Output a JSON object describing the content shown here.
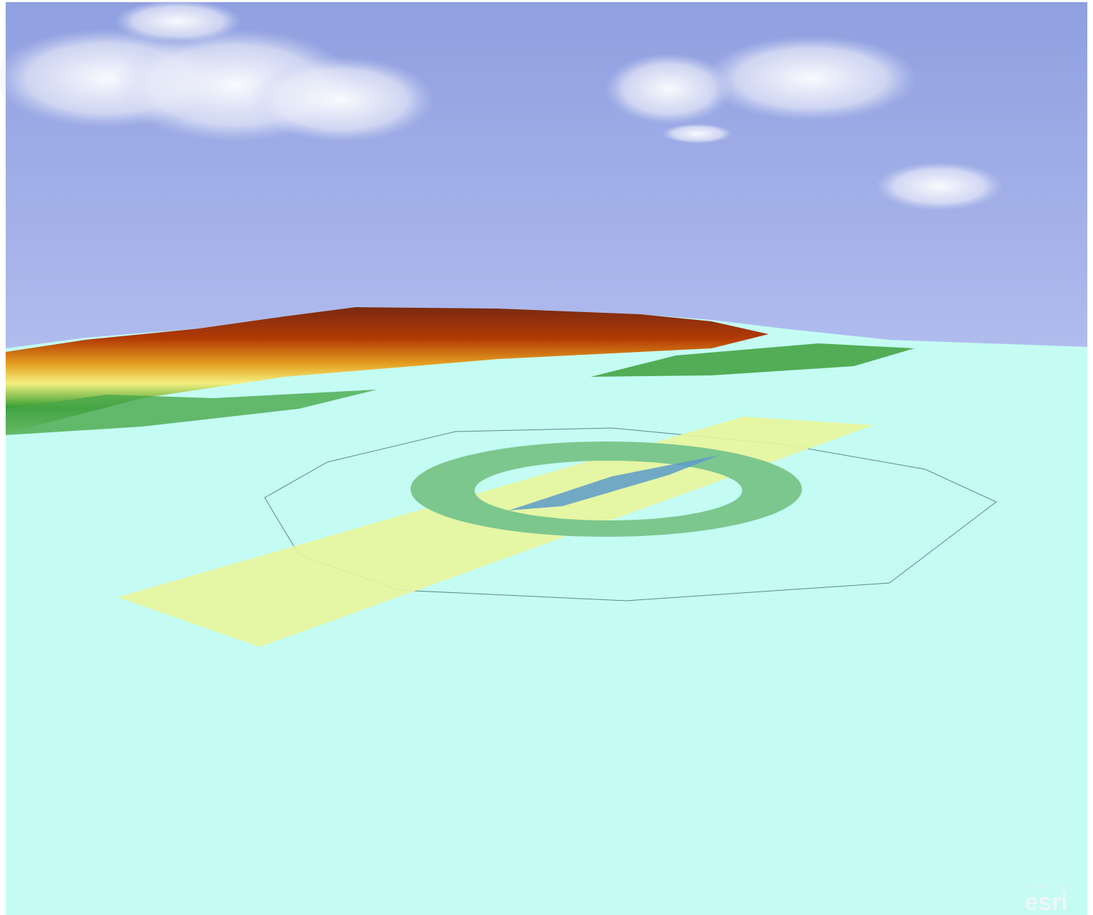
{
  "attribution": {
    "powered_by": "POWERED BY",
    "brand": "esri"
  }
}
